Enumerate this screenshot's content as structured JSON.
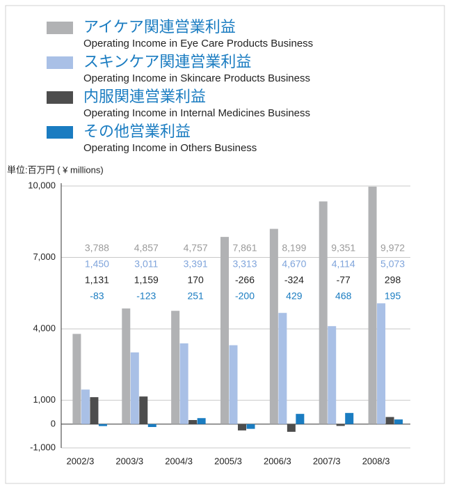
{
  "chart_data": {
    "type": "bar",
    "y_label": "単位:百万円 ( ¥ millions)",
    "categories": [
      "2002/3",
      "2003/3",
      "2004/3",
      "2005/3",
      "2006/3",
      "2007/3",
      "2008/3"
    ],
    "series": [
      {
        "name": "アイケア関連営業利益",
        "subtitle": "Operating Income in Eye Care Products Business",
        "color": "#b1b2b4",
        "values": [
          3788,
          4857,
          4757,
          7861,
          8199,
          9351,
          9972
        ],
        "value_labels": [
          "3,788",
          "4,857",
          "4,757",
          "7,861",
          "8,199",
          "9,351",
          "9,972"
        ],
        "label_color": "#9a9a9a"
      },
      {
        "name": "スキンケア関連営業利益",
        "subtitle": "Operating Income in Skincare Products Business",
        "color": "#a9c0e6",
        "values": [
          1450,
          3011,
          3391,
          3313,
          4670,
          4114,
          5073
        ],
        "value_labels": [
          "1,450",
          "3,011",
          "3,391",
          "3,313",
          "4,670",
          "4,114",
          "5,073"
        ],
        "label_color": "#7fa4db"
      },
      {
        "name": "内服関連営業利益",
        "subtitle": "Operating Income in Internal Medicines Business",
        "color": "#4d4d4d",
        "values": [
          1131,
          1159,
          170,
          -266,
          -324,
          -77,
          298
        ],
        "value_labels": [
          "1,131",
          "1,159",
          "170",
          "-266",
          "-324",
          "-77",
          "298"
        ],
        "label_color": "#222222"
      },
      {
        "name": "その他営業利益",
        "subtitle": "Operating Income in Others Business",
        "color": "#1a7cc1",
        "values": [
          -83,
          -123,
          251,
          -200,
          429,
          468,
          195
        ],
        "value_labels": [
          "-83",
          "-123",
          "251",
          "-200",
          "429",
          "468",
          "195"
        ],
        "label_color": "#1a7cc1"
      }
    ],
    "ylim": [
      -1000,
      10000
    ],
    "yticks": [
      {
        "value": -1000,
        "label": "-1,000"
      },
      0,
      {
        "value": 1000,
        "label": "1,000"
      },
      {
        "value": 4000,
        "label": "4,000"
      },
      {
        "value": 7000,
        "label": "7,000"
      },
      {
        "value": 10000,
        "label": "10,000"
      }
    ],
    "grid": true
  }
}
